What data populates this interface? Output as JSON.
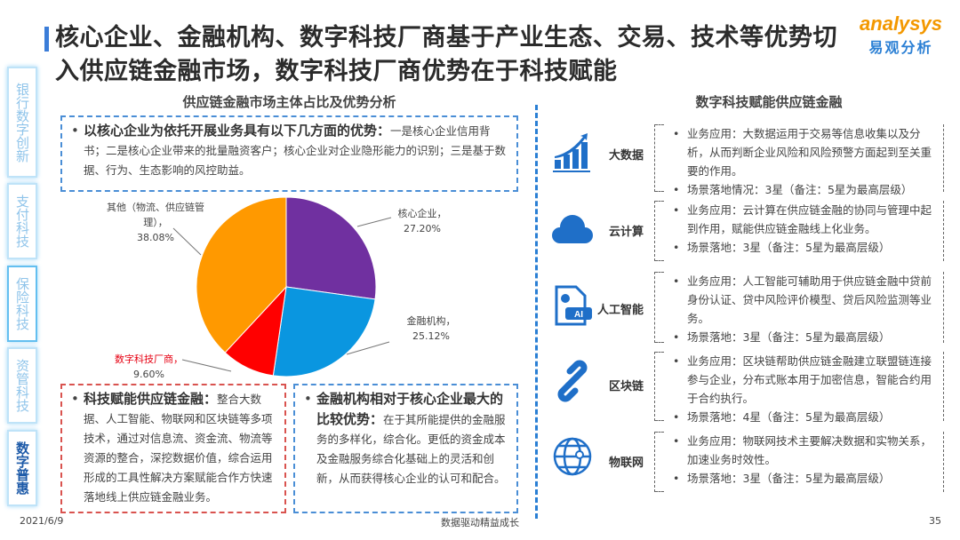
{
  "title": "核心企业、金融机构、数字科技厂商基于产业生态、交易、技术等优势切入供应链金融市场，数字科技厂商优势在于科技赋能",
  "logo": {
    "en": "analysys",
    "cn": "易观分析"
  },
  "sidebar": {
    "items": [
      {
        "label": "银行数字创新"
      },
      {
        "label": "支付科技"
      },
      {
        "label": "保险科技"
      },
      {
        "label": "资管科技"
      },
      {
        "label": "数字普惠",
        "active": true
      }
    ]
  },
  "left": {
    "section_title": "供应链金融市场主体占比及优势分析",
    "top_box": {
      "bold": "以核心企业为依托开展业务具有以下几方面的优势：",
      "text": "一是核心企业信用背书；二是核心企业带来的批量融资客户；核心企业对企业隐形能力的识别；三是基于数据、行为、生态影响的风控助益。"
    },
    "bottom_left_box": {
      "bold": "科技赋能供应链金融：",
      "text": "整合大数据、人工智能、物联网和区块链等多项技术，通过对信息流、资金流、物流等资源的整合，深挖数据价值，综合运用形成的工具性解决方案赋能合作方快速落地线上供应链金融业务。"
    },
    "bottom_right_box": {
      "bold": "金融机构相对于核心企业最大的比较优势：",
      "text": "在于其所能提供的金融服务的多样化，综合化。更低的资金成本及金融服务综合化基础上的灵活和创新，从而获得核心企业的认可和配合。"
    }
  },
  "chart_data": {
    "type": "pie",
    "categories": [
      "核心企业",
      "金融机构",
      "数字科技厂商",
      "其他（物流、供应链管理）"
    ],
    "values": [
      27.2,
      25.12,
      9.6,
      38.08
    ],
    "labels": [
      {
        "name": "核心企业，",
        "value": "27.20%"
      },
      {
        "name": "金融机构，",
        "value": "25.12%"
      },
      {
        "name": "数字科技厂商，",
        "value": "9.60%"
      },
      {
        "name": "其他（物流、供应链管理），",
        "value": "38.08%"
      }
    ],
    "colors": [
      "#7030A0",
      "#0A96E0",
      "#FF0000",
      "#FF9900"
    ],
    "highlight_label_color": "#E60012"
  },
  "right": {
    "section_title": "数字科技赋能供应链金融",
    "items": [
      {
        "icon": "bar-chart-growth-icon",
        "label": "大数据",
        "app": "业务应用：大数据运用于交易等信息收集以及分析，从而判断企业风险和风险预警方面起到至关重要的作用。",
        "landing": "场景落地情况：3星（备注：5星为最高层级）"
      },
      {
        "icon": "cloud-icon",
        "label": "云计算",
        "app": "业务应用：云计算在供应链金融的协同与管理中起到作用，赋能供应链金融线上化业务。",
        "landing": "场景落地：3星（备注：5星为最高层级）"
      },
      {
        "icon": "ai-document-icon",
        "label": "人工智能",
        "app": "业务应用：人工智能可辅助用于供应链金融中贷前身份认证、贷中风险评价模型、贷后风险监测等业务。",
        "landing": "场景落地：3星（备注：5星为最高层级）"
      },
      {
        "icon": "chain-link-icon",
        "label": "区块链",
        "app": "业务应用：区块链帮助供应链金融建立联盟链连接参与企业，分布式账本用于加密信息，智能合约用于合约执行。",
        "landing": "场景落地：4星（备注：5星为最高层级）"
      },
      {
        "icon": "globe-network-icon",
        "label": "物联网",
        "app": "业务应用：物联网技术主要解决数据和实物关系，加速业务时效性。",
        "landing": "场景落地：3星（备注：5星为最高层级）"
      }
    ]
  },
  "footer": {
    "date": "2021/6/9",
    "slogan": "数据驱动精益成长",
    "page": "35"
  }
}
